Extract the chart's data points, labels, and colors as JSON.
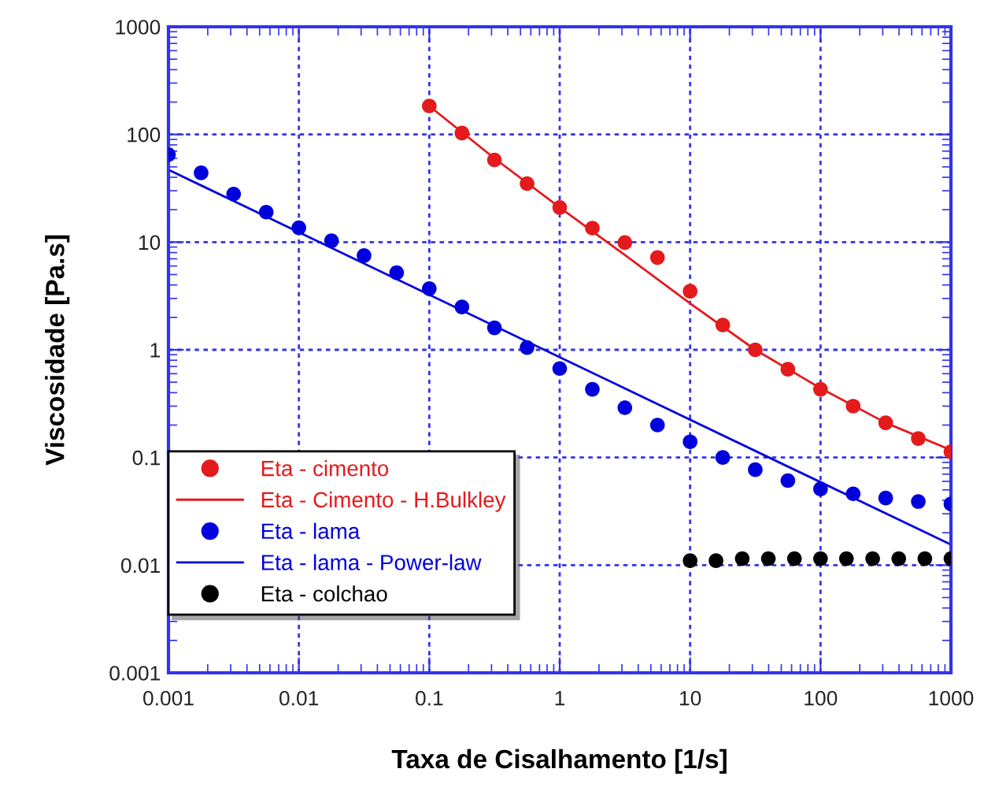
{
  "chart_data": {
    "type": "scatter",
    "xlabel": "Taxa de Cisalhamento [1/s]",
    "ylabel": "Viscosidade [Pa.s]",
    "log": "xy",
    "grid": true,
    "legend": "bottom left",
    "marker": "circle",
    "xlim": [
      0.001,
      1000
    ],
    "ylim": [
      0.001,
      1000
    ],
    "xticks": [
      0.001,
      0.01,
      0.1,
      1,
      10,
      100,
      1000
    ],
    "yticks": [
      0.001,
      0.01,
      0.1,
      1,
      10,
      100,
      1000
    ],
    "series": [
      {
        "name": "Eta - cimento",
        "color": "#e41a1c",
        "x": [
          0.1,
          0.178,
          0.316,
          0.562,
          1,
          1.78,
          3.16,
          5.62,
          10,
          17.8,
          31.6,
          56.2,
          100,
          178,
          316,
          562,
          1000
        ],
        "values": [
          184,
          103,
          58,
          35,
          21,
          13.5,
          9.9,
          7.2,
          3.5,
          1.7,
          1.0,
          0.66,
          0.43,
          0.3,
          0.21,
          0.15,
          0.113
        ]
      },
      {
        "name": "Eta - Cimento - H.Bulkley",
        "type": "line",
        "marker": "none",
        "line_style": "solid",
        "color": "#e41a1c",
        "x": [
          0.1,
          0.316,
          1,
          3.16,
          10,
          31.6,
          100,
          316,
          1000
        ],
        "values": [
          184,
          60,
          21,
          7.6,
          2.7,
          1.0,
          0.44,
          0.21,
          0.117
        ]
      },
      {
        "name": "Eta - lama",
        "color": "#0000dd",
        "x": [
          0.001,
          0.00178,
          0.00316,
          0.00562,
          0.01,
          0.0178,
          0.0316,
          0.0562,
          0.1,
          0.178,
          0.316,
          0.562,
          1,
          1.78,
          3.16,
          5.62,
          10,
          17.8,
          31.6,
          56.2,
          100,
          178,
          316,
          562,
          1000
        ],
        "values": [
          65,
          44,
          28,
          19,
          13.6,
          10.3,
          7.5,
          5.2,
          3.7,
          2.5,
          1.6,
          1.05,
          0.67,
          0.43,
          0.29,
          0.2,
          0.14,
          0.1,
          0.077,
          0.061,
          0.051,
          0.046,
          0.042,
          0.039,
          0.037
        ]
      },
      {
        "name": "Eta - lama - Power-law",
        "type": "line",
        "marker": "none",
        "line_style": "solid",
        "color": "#0000dd",
        "x": [
          0.001,
          1000
        ],
        "values": [
          47,
          0.0155
        ]
      },
      {
        "name": "Eta - colchao",
        "color": "#000000",
        "x": [
          10,
          15.8,
          25.1,
          39.8,
          63.1,
          100,
          158,
          251,
          398,
          631,
          1000
        ],
        "values": [
          0.011,
          0.011,
          0.0115,
          0.0115,
          0.0115,
          0.0115,
          0.0115,
          0.0115,
          0.0115,
          0.0115,
          0.0115
        ]
      }
    ]
  }
}
